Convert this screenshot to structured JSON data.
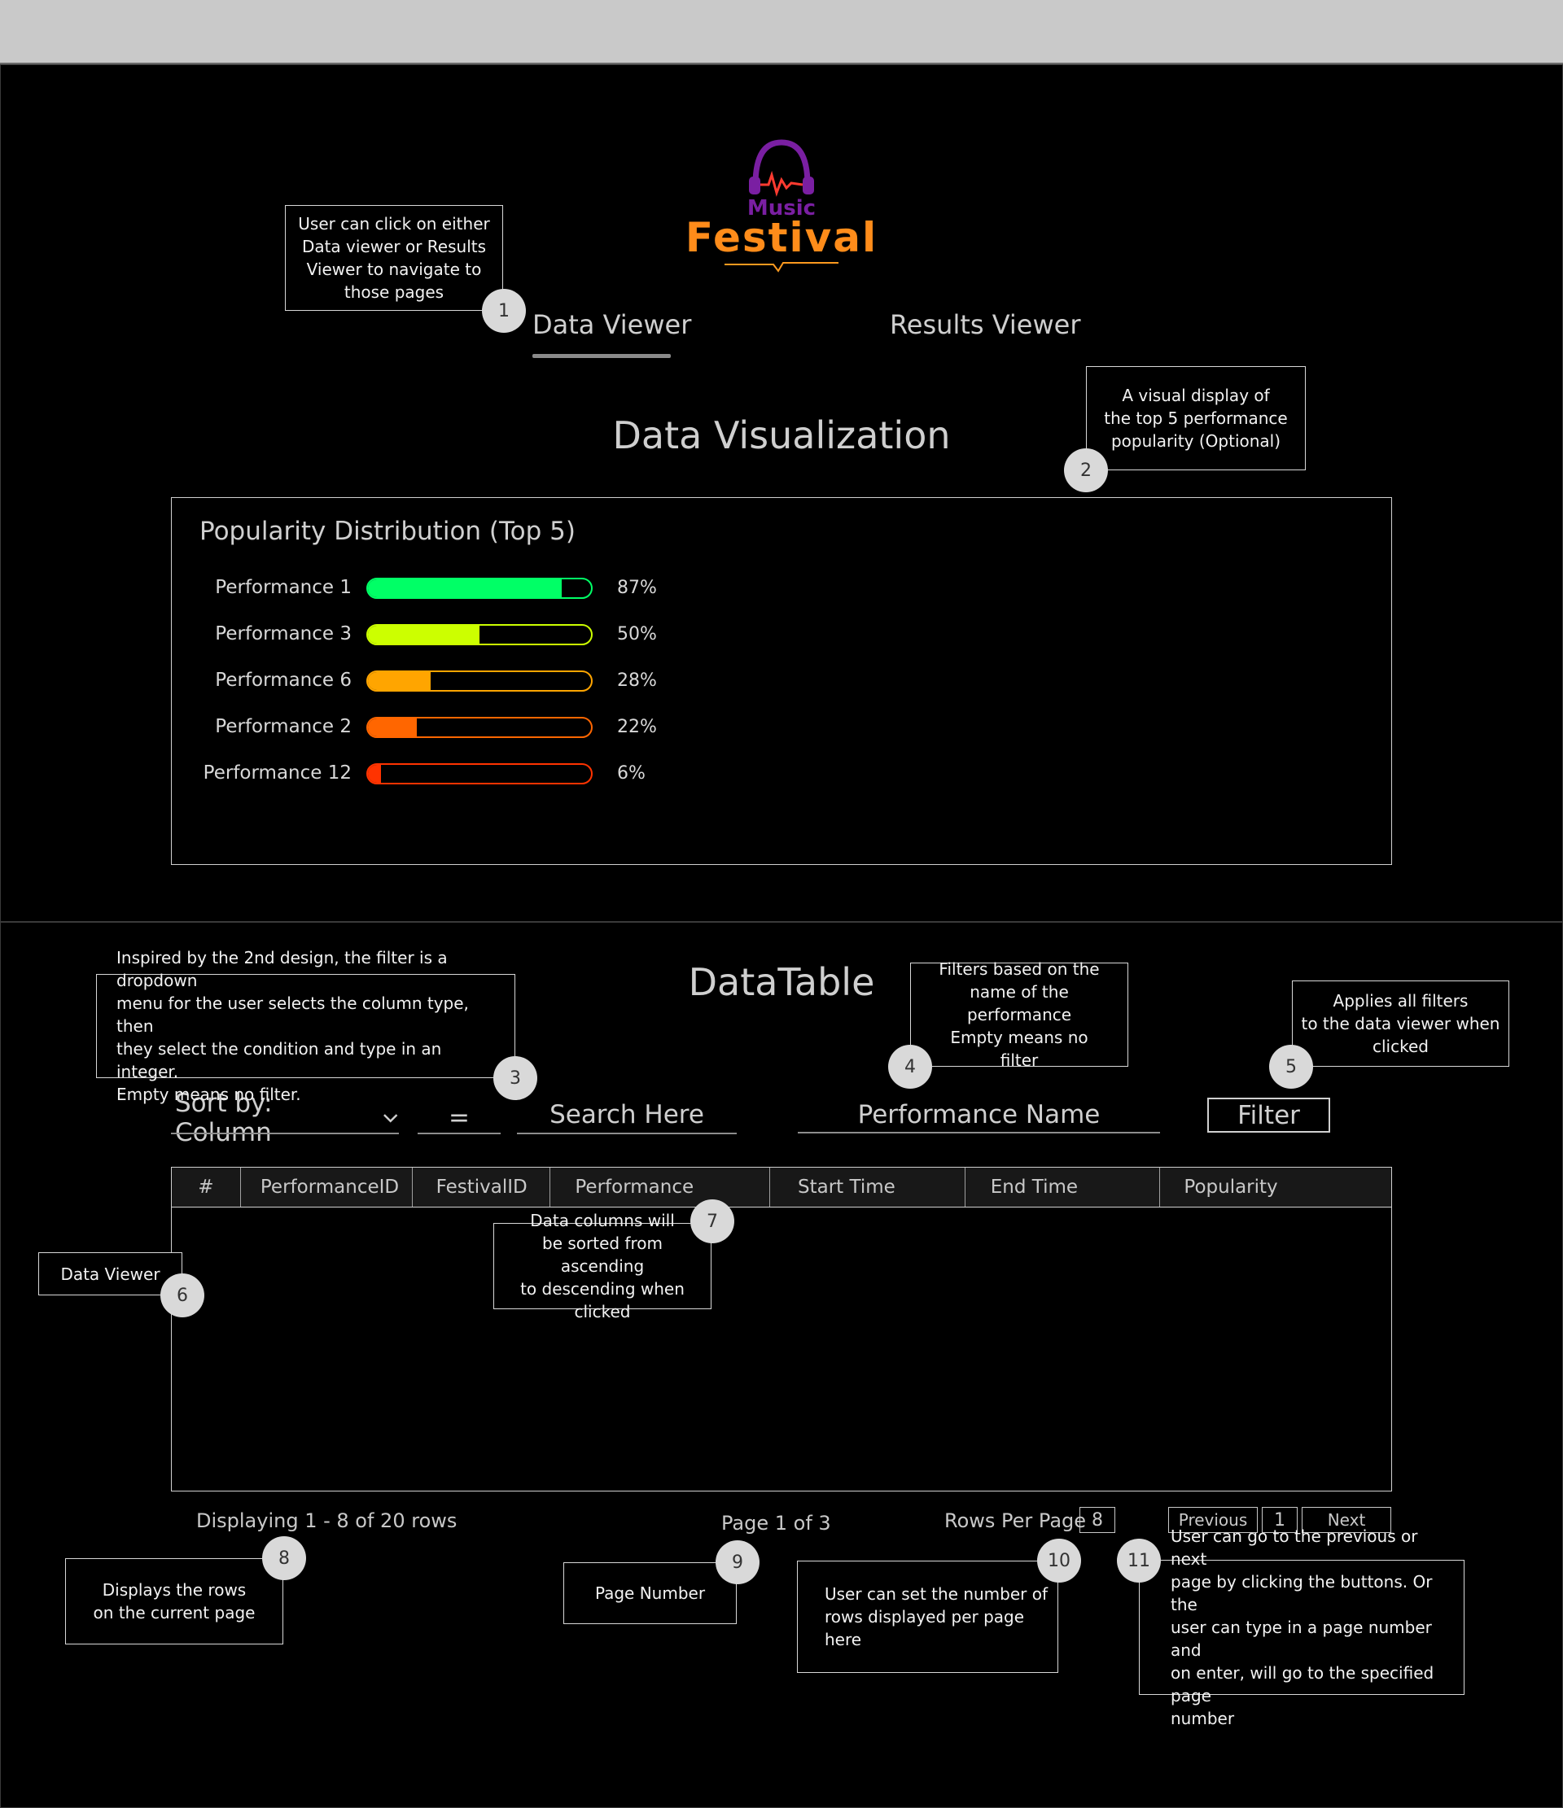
{
  "logo": {
    "top_word": "Music",
    "bottom_word": "Festival"
  },
  "nav": {
    "tabs": [
      {
        "label": "Data Viewer",
        "active": true
      },
      {
        "label": "Results Viewer",
        "active": false
      }
    ]
  },
  "visualization": {
    "title": "Data Visualization",
    "chart_data": {
      "type": "bar",
      "title": "Popularity Distribution (Top 5)",
      "categories": [
        "Performance 1",
        "Performance 3",
        "Performance 6",
        "Performance 2",
        "Performance 12"
      ],
      "values": [
        87,
        50,
        28,
        22,
        6
      ],
      "value_labels": [
        "87%",
        "50%",
        "28%",
        "22%",
        "6%"
      ],
      "colors": [
        "#00ff66",
        "#ccff00",
        "#ffa500",
        "#ff6600",
        "#ff3300"
      ],
      "xlim": [
        0,
        100
      ],
      "orientation": "horizontal"
    }
  },
  "datatable": {
    "title": "DataTable",
    "sort_label": "Sort by: Column",
    "condition": "=",
    "search_placeholder": "Search Here",
    "name_placeholder": "Performance Name",
    "filter_button": "Filter",
    "columns": [
      "#",
      "PerformanceID",
      "FestivalID",
      "Performance",
      "Start Time",
      "End Time",
      "Popularity"
    ],
    "footer": {
      "displaying": "Displaying 1 - 8 of 20 rows",
      "page": "Page 1 of 3",
      "rows_per_page_label": "Rows Per Page",
      "rows_per_page_value": "8",
      "previous": "Previous",
      "current_page": "1",
      "next": "Next"
    }
  },
  "annotations": [
    {
      "num": "1",
      "text": "User can click on either\nData viewer or Results\nViewer to navigate to\nthose pages"
    },
    {
      "num": "2",
      "text": "A visual display of\nthe top 5 performance\npopularity (Optional)"
    },
    {
      "num": "3",
      "text": "Inspired by the 2nd design, the filter is a dropdown\nmenu for the user selects the column type, then\nthey select the condition and type in an integer.\nEmpty means no filter."
    },
    {
      "num": "4",
      "text": "Filters based on the\nname of the performance\nEmpty means no\nfilter"
    },
    {
      "num": "5",
      "text": "Applies all filters\nto the data viewer when\nclicked"
    },
    {
      "num": "6",
      "text": "Data Viewer"
    },
    {
      "num": "7",
      "text": "Data columns will\nbe sorted from ascending\nto descending when clicked"
    },
    {
      "num": "8",
      "text": "Displays the rows\non the current page"
    },
    {
      "num": "9",
      "text": "Page Number"
    },
    {
      "num": "10",
      "text": "User can set the number of\nrows displayed per page\nhere"
    },
    {
      "num": "11",
      "text": "User can go to the previous or next\npage by clicking the buttons. Or the\nuser can type in a page number and\non enter, will go to the specified page\nnumber"
    }
  ]
}
